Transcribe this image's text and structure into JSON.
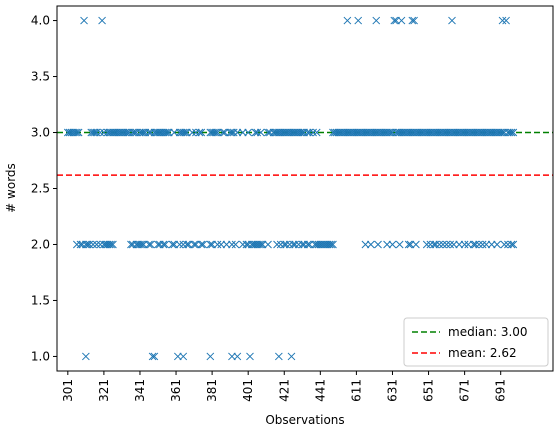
{
  "chart_data": {
    "type": "scatter",
    "xlabel": "Observations",
    "ylabel": "# words",
    "ylim": [
      0.87,
      4.13
    ],
    "yticks": [
      1.0,
      1.5,
      2.0,
      2.5,
      3.0,
      3.5,
      4.0
    ],
    "ytick_labels": [
      "1.0",
      "1.5",
      "2.0",
      "2.5",
      "3.0",
      "3.5",
      "4.0"
    ],
    "xtick_labels": [
      "301",
      "321",
      "341",
      "361",
      "381",
      "401",
      "421",
      "441",
      "611",
      "631",
      "651",
      "671",
      "691"
    ],
    "xlim": [
      -6,
      269
    ],
    "xticks": [
      0,
      20,
      40,
      60,
      80,
      100,
      120,
      140,
      160,
      180,
      200,
      220,
      240
    ],
    "marker_color": "#1f77b4",
    "legend": {
      "placement": "lower-right",
      "entries": [
        {
          "label": "median: 3.00",
          "color": "#008000",
          "style": "dashed",
          "value": 3.0
        },
        {
          "label": "mean: 2.62",
          "color": "#ff0000",
          "style": "dashed",
          "value": 2.62
        }
      ]
    },
    "series": [
      {
        "marker": "x",
        "points": {
          "4.0": [
            9,
            19,
            155,
            161,
            171,
            181,
            182,
            185,
            191,
            192,
            213,
            241,
            243
          ],
          "3.0": [
            0,
            1,
            2,
            3,
            4,
            5,
            6,
            13,
            14,
            15,
            16,
            18,
            20,
            22,
            23,
            24,
            25,
            26,
            27,
            28,
            29,
            30,
            31,
            32,
            33,
            34,
            36,
            37,
            38,
            40,
            41,
            42,
            43,
            45,
            46,
            48,
            49,
            50,
            51,
            52,
            53,
            54,
            55,
            56,
            59,
            62,
            63,
            64,
            65,
            66,
            69,
            71,
            73,
            74,
            79,
            80,
            81,
            82,
            83,
            86,
            87,
            90,
            91,
            92,
            94,
            97,
            100,
            104,
            105,
            107,
            111,
            112,
            114,
            115,
            116,
            117,
            118,
            119,
            120,
            121,
            122,
            123,
            124,
            125,
            126,
            127,
            128,
            129,
            130,
            131,
            133,
            134,
            136,
            138,
            147,
            148,
            149,
            150,
            151,
            152,
            153,
            154,
            155,
            156,
            157,
            158,
            159,
            160,
            161,
            162,
            163,
            164,
            165,
            166,
            167,
            168,
            169,
            170,
            171,
            172,
            173,
            174,
            175,
            176,
            177,
            178,
            179,
            180,
            182,
            183,
            184,
            185,
            186,
            187,
            188,
            189,
            190,
            191,
            192,
            193,
            194,
            195,
            196,
            197,
            198,
            199,
            200,
            201,
            202,
            203,
            204,
            205,
            206,
            207,
            208,
            209,
            210,
            211,
            212,
            213,
            214,
            215,
            216,
            217,
            218,
            219,
            220,
            221,
            222,
            223,
            224,
            225,
            226,
            227,
            228,
            229,
            230,
            231,
            232,
            233,
            234,
            235,
            236,
            237,
            238,
            239,
            240,
            241,
            242,
            244,
            245,
            246,
            247
          ],
          "2.0": [
            5,
            7,
            8,
            10,
            11,
            12,
            14,
            16,
            18,
            20,
            21,
            22,
            23,
            24,
            25,
            35,
            36,
            38,
            39,
            40,
            41,
            42,
            45,
            46,
            50,
            51,
            53,
            54,
            58,
            59,
            62,
            64,
            66,
            67,
            70,
            71,
            74,
            75,
            79,
            80,
            83,
            85,
            88,
            91,
            93,
            97,
            99,
            100,
            102,
            103,
            104,
            105,
            106,
            107,
            108,
            111,
            116,
            118,
            120,
            121,
            123,
            125,
            126,
            128,
            130,
            131,
            133,
            134,
            137,
            138,
            139,
            140,
            141,
            142,
            143,
            144,
            145,
            146,
            147,
            165,
            168,
            172,
            177,
            180,
            184,
            189,
            190,
            193,
            199,
            201,
            203,
            204,
            206,
            208,
            210,
            212,
            214,
            217,
            220,
            222,
            225,
            226,
            228,
            230,
            232,
            235,
            238,
            242,
            244,
            246,
            247
          ],
          "1.0": [
            10,
            47,
            48,
            61,
            64,
            79,
            91,
            94,
            101,
            117,
            124
          ]
        }
      }
    ]
  }
}
